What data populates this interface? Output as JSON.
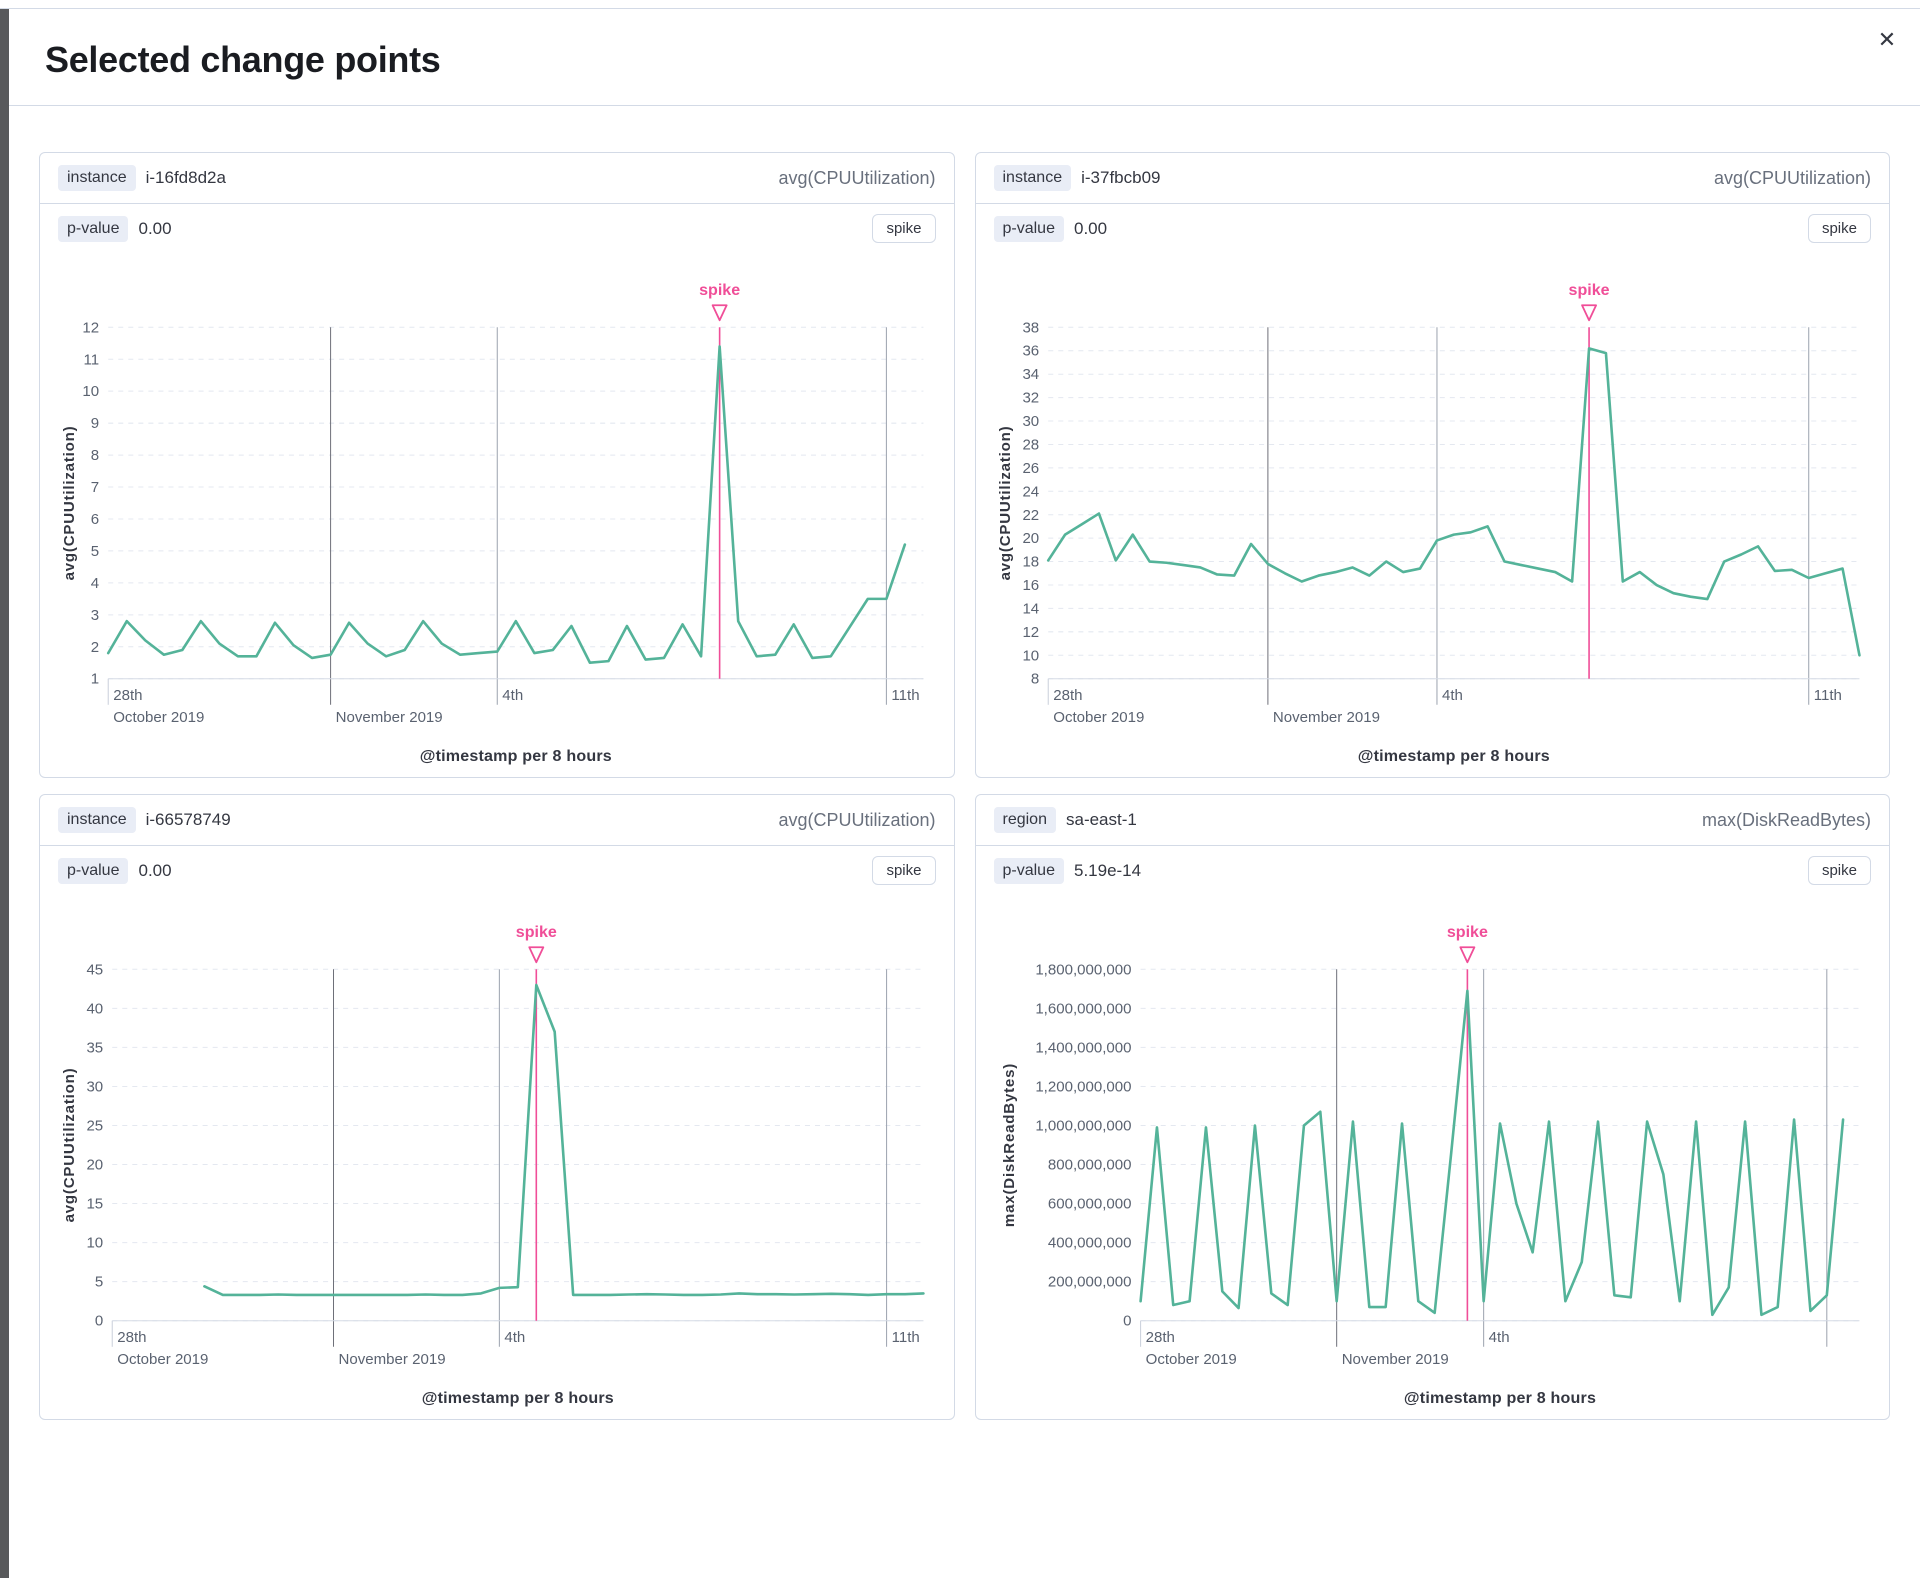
{
  "header": {
    "title": "Selected change points",
    "close_icon": "✕"
  },
  "colors": {
    "line_green": "#54B399",
    "spike_pink": "#F04E98",
    "panel_border": "#D3DAE6",
    "badge_bg": "#E9EDF6",
    "overlay_strip": "#58595B"
  },
  "panels": [
    {
      "field": "instance",
      "value": "i-16fd8d2a",
      "metric": "avg(CPUUtilization)",
      "p_label": "p-value",
      "p_value": "0.00",
      "type_label": "spike"
    },
    {
      "field": "instance",
      "value": "i-37fbcb09",
      "metric": "avg(CPUUtilization)",
      "p_label": "p-value",
      "p_value": "0.00",
      "type_label": "spike"
    },
    {
      "field": "instance",
      "value": "i-66578749",
      "metric": "avg(CPUUtilization)",
      "p_label": "p-value",
      "p_value": "0.00",
      "type_label": "spike"
    },
    {
      "field": "region",
      "value": "sa-east-1",
      "metric": "max(DiskReadBytes)",
      "p_label": "p-value",
      "p_value": "5.19e-14",
      "type_label": "spike"
    }
  ],
  "chart_data": [
    {
      "type": "line",
      "entity": "instance i-16fd8d2a",
      "annotation": "spike",
      "xlabel": "@timestamp per 8 hours",
      "ylabel": "avg(CPUUtilization)",
      "ylim": [
        1,
        12
      ],
      "y_ticks": [
        "1",
        "2",
        "3",
        "4",
        "5",
        "6",
        "7",
        "8",
        "9",
        "10",
        "11",
        "12"
      ],
      "x_max": 44,
      "x_ticks": [
        {
          "i": 0,
          "line1": "28th",
          "line2": "October 2019",
          "style": "tick"
        },
        {
          "i": 12,
          "line1": "",
          "line2": "November 2019",
          "style": "dark"
        },
        {
          "i": 21,
          "line1": "4th",
          "line2": "",
          "style": "medium"
        },
        {
          "i": 42,
          "line1": "11th",
          "line2": "",
          "style": "medium"
        }
      ],
      "spike_index": 33,
      "values": [
        1.8,
        2.8,
        2.2,
        1.75,
        1.9,
        2.8,
        2.1,
        1.7,
        1.7,
        2.75,
        2.05,
        1.65,
        1.75,
        2.75,
        2.1,
        1.7,
        1.9,
        2.8,
        2.1,
        1.75,
        1.8,
        1.85,
        2.8,
        1.8,
        1.9,
        2.65,
        1.5,
        1.55,
        2.65,
        1.6,
        1.65,
        2.7,
        1.7,
        11.4,
        2.8,
        1.7,
        1.75,
        2.7,
        1.65,
        1.7,
        2.6,
        3.5,
        3.5,
        5.2
      ]
    },
    {
      "type": "line",
      "entity": "instance i-37fbcb09",
      "annotation": "spike",
      "xlabel": "@timestamp per 8 hours",
      "ylabel": "avg(CPUUtilization)",
      "ylim": [
        8,
        38
      ],
      "y_ticks": [
        "8",
        "10",
        "12",
        "14",
        "16",
        "18",
        "20",
        "22",
        "24",
        "26",
        "28",
        "30",
        "32",
        "34",
        "36",
        "38"
      ],
      "x_max": 48,
      "x_ticks": [
        {
          "i": 0,
          "line1": "28th",
          "line2": "October 2019",
          "style": "tick"
        },
        {
          "i": 13,
          "line1": "",
          "line2": "November 2019",
          "style": "dark"
        },
        {
          "i": 23,
          "line1": "4th",
          "line2": "",
          "style": "medium"
        },
        {
          "i": 45,
          "line1": "11th",
          "line2": "",
          "style": "medium"
        }
      ],
      "spike_index": 32,
      "values": [
        18.1,
        20.3,
        21.2,
        22.1,
        18.1,
        20.3,
        18.0,
        17.9,
        17.7,
        17.5,
        16.9,
        16.8,
        19.5,
        17.8,
        17.0,
        16.3,
        16.8,
        17.1,
        17.5,
        16.8,
        18.0,
        17.1,
        17.4,
        19.8,
        20.3,
        20.5,
        21.0,
        18.0,
        17.7,
        17.4,
        17.1,
        16.3,
        36.2,
        35.8,
        16.3,
        17.1,
        16.0,
        15.3,
        15.0,
        14.8,
        18.0,
        18.6,
        19.3,
        17.2,
        17.3,
        16.6,
        17.0,
        17.4,
        10.0
      ]
    },
    {
      "type": "line",
      "entity": "instance i-66578749",
      "annotation": "spike",
      "xlabel": "@timestamp per 8 hours",
      "ylabel": "avg(CPUUtilization)",
      "ylim": [
        0,
        45
      ],
      "y_ticks": [
        "0",
        "5",
        "10",
        "15",
        "20",
        "25",
        "30",
        "35",
        "40",
        "45"
      ],
      "x_max": 44,
      "x_ticks": [
        {
          "i": 0,
          "line1": "28th",
          "line2": "October 2019",
          "style": "tick"
        },
        {
          "i": 12,
          "line1": "",
          "line2": "November 2019",
          "style": "dark"
        },
        {
          "i": 21,
          "line1": "4th",
          "line2": "",
          "style": "medium"
        },
        {
          "i": 42,
          "line1": "11th",
          "line2": "",
          "style": "medium"
        }
      ],
      "spike_index": 23,
      "values": [
        null,
        null,
        null,
        null,
        null,
        4.4,
        3.3,
        3.3,
        3.3,
        3.35,
        3.3,
        3.3,
        3.3,
        3.3,
        3.3,
        3.3,
        3.3,
        3.35,
        3.3,
        3.3,
        3.5,
        4.2,
        4.3,
        43.0,
        37.0,
        3.3,
        3.3,
        3.3,
        3.35,
        3.4,
        3.35,
        3.3,
        3.3,
        3.35,
        3.5,
        3.4,
        3.4,
        3.35,
        3.4,
        3.45,
        3.4,
        3.3,
        3.4,
        3.4,
        3.5
      ]
    },
    {
      "type": "line",
      "entity": "region sa-east-1",
      "annotation": "spike",
      "xlabel": "@timestamp per 8 hours",
      "ylabel": "max(DiskReadBytes)",
      "ylim": [
        0,
        1800000000
      ],
      "y_ticks": [
        "0",
        "200,000,000",
        "400,000,000",
        "600,000,000",
        "800,000,000",
        "1,000,000,000",
        "1,200,000,000",
        "1,400,000,000",
        "1,600,000,000",
        "1,800,000,000"
      ],
      "x_max": 44,
      "x_ticks": [
        {
          "i": 0,
          "line1": "28th",
          "line2": "October 2019",
          "style": "tick"
        },
        {
          "i": 12,
          "line1": "",
          "line2": "November 2019",
          "style": "dark"
        },
        {
          "i": 21,
          "line1": "4th",
          "line2": "",
          "style": "medium"
        },
        {
          "i": 42,
          "line1": "",
          "line2": "",
          "style": "medium"
        }
      ],
      "spike_index": 20,
      "values": [
        100000000,
        990000000,
        80000000,
        100000000,
        990000000,
        150000000,
        65000000,
        1000000000,
        140000000,
        80000000,
        1000000000,
        1070000000,
        100000000,
        1020000000,
        70000000,
        70000000,
        1010000000,
        100000000,
        40000000,
        850000000,
        1690000000,
        100000000,
        1010000000,
        600000000,
        350000000,
        1020000000,
        100000000,
        300000000,
        1020000000,
        130000000,
        120000000,
        1020000000,
        750000000,
        100000000,
        1020000000,
        30000000,
        170000000,
        1020000000,
        30000000,
        70000000,
        1030000000,
        50000000,
        130000000,
        1030000000
      ]
    }
  ]
}
